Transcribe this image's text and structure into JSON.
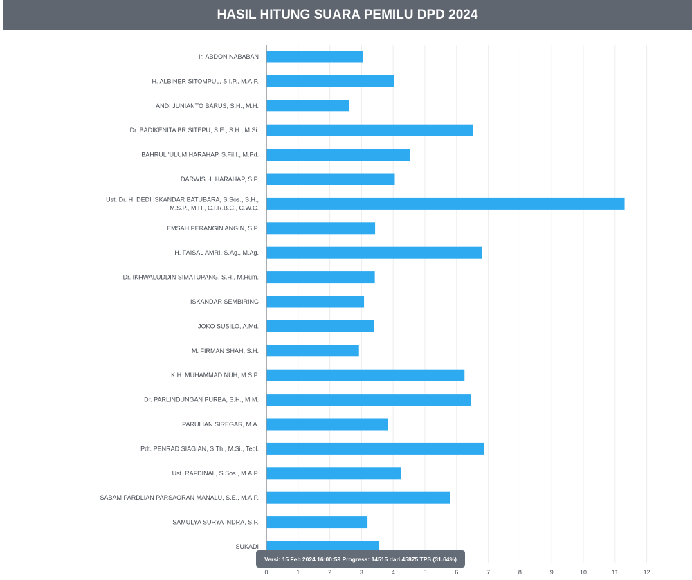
{
  "header": {
    "title": "HASIL HITUNG SUARA PEMILU DPD 2024"
  },
  "colors": {
    "bar": "#2eaaf0",
    "header_bg": "#5f6670",
    "grid": "#ececec",
    "tooltip_bg": "#646c77"
  },
  "tooltip": {
    "text": "Versi: 15 Feb 2024 16:00:59 Progress: 14515 dari 45875 TPS (31.64%)"
  },
  "chart_data": {
    "type": "bar",
    "orientation": "horizontal",
    "title": "",
    "xlabel": "",
    "ylabel": "",
    "xlim": [
      0,
      12
    ],
    "x_ticks": [
      0,
      1,
      2,
      3,
      4,
      5,
      6,
      7,
      8,
      9,
      10,
      11,
      12
    ],
    "grid": true,
    "categories": [
      "Ir. ABDON NABABAN",
      "H. ALBINER SITOMPUL, S.I.P., M.A.P.",
      "ANDI JUNIANTO BARUS, S.H., M.H.",
      "Dr. BADIKENITA BR SITEPU, S.E., S.H., M.Si.",
      "BAHRUL 'ULUM HARAHAP, S.Fil.I., M.Pd.",
      "DARWIS H. HARAHAP, S.P.",
      "Ust. Dr. H. DEDI ISKANDAR BATUBARA, S.Sos., S.H., M.S.P., M.H., C.I.R.B.C., C.W.C.",
      "EMSAH PERANGIN ANGIN, S.P.",
      "H. FAISAL AMRI, S.Ag., M.Ag.",
      "Dr. IKHWALUDDIN SIMATUPANG, S.H., M.Hum.",
      "ISKANDAR SEMBIRING",
      "JOKO SUSILO, A.Md.",
      "M. FIRMAN SHAH, S.H.",
      "K.H. MUHAMMAD NUH, M.S.P.",
      "Dr. PARLINDUNGAN PURBA, S.H., M.M.",
      "PARULIAN SIREGAR, M.A.",
      "Pdt. PENRAD SIAGIAN, S.Th., M.Si., Teol.",
      "Ust. RAFDINAL, S.Sos., M.A.P.",
      "SABAM PARDLIAN PARSAORAN MANALU, S.E., M.A.P.",
      "SAMULYA SURYA INDRA, S.P.",
      "SUKADI"
    ],
    "category_lines": [
      [
        "Ir. ABDON NABABAN"
      ],
      [
        "H. ALBINER SITOMPUL, S.I.P., M.A.P."
      ],
      [
        "ANDI JUNIANTO BARUS, S.H., M.H."
      ],
      [
        "Dr. BADIKENITA BR SITEPU, S.E., S.H., M.Si."
      ],
      [
        "BAHRUL 'ULUM HARAHAP, S.Fil.I., M.Pd."
      ],
      [
        "DARWIS H. HARAHAP, S.P."
      ],
      [
        "Ust. Dr. H. DEDI ISKANDAR BATUBARA, S.Sos., S.H.,",
        "M.S.P., M.H., C.I.R.B.C., C.W.C."
      ],
      [
        "EMSAH PERANGIN ANGIN, S.P."
      ],
      [
        "H. FAISAL AMRI, S.Ag., M.Ag."
      ],
      [
        "Dr. IKHWALUDDIN SIMATUPANG, S.H., M.Hum."
      ],
      [
        "ISKANDAR SEMBIRING"
      ],
      [
        "JOKO SUSILO, A.Md."
      ],
      [
        "M. FIRMAN SHAH, S.H."
      ],
      [
        "K.H. MUHAMMAD NUH, M.S.P."
      ],
      [
        "Dr. PARLINDUNGAN PURBA, S.H., M.M."
      ],
      [
        "PARULIAN SIREGAR, M.A."
      ],
      [
        "Pdt. PENRAD SIAGIAN, S.Th., M.Si., Teol."
      ],
      [
        "Ust. RAFDINAL, S.Sos., M.A.P."
      ],
      [
        "SABAM PARDLIAN PARSAORAN MANALU, S.E., M.A.P."
      ],
      [
        "SAMULYA SURYA INDRA, S.P."
      ],
      [
        "SUKADI"
      ]
    ],
    "values": [
      3.05,
      4.03,
      2.62,
      6.52,
      4.53,
      4.05,
      11.3,
      3.43,
      6.8,
      3.42,
      3.08,
      3.39,
      2.92,
      6.25,
      6.46,
      3.83,
      6.86,
      4.24,
      5.8,
      3.19,
      3.56
    ]
  }
}
